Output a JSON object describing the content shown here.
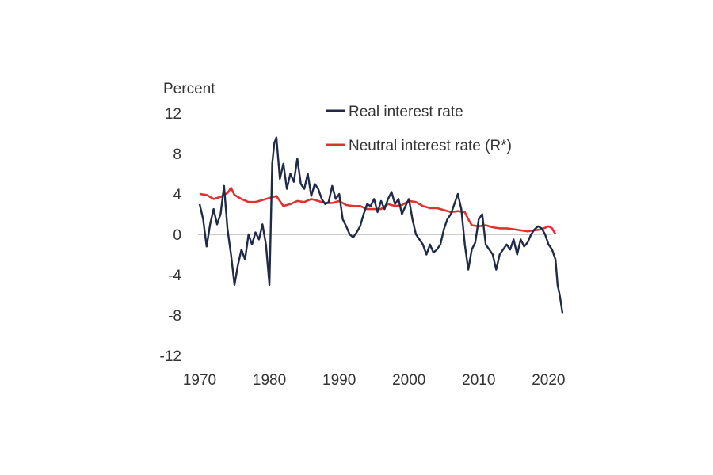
{
  "chart_data": {
    "type": "line",
    "title": "",
    "y_unit_label": "Percent",
    "xlabel": "",
    "ylabel": "Percent",
    "xlim": [
      1970,
      2022
    ],
    "ylim": [
      -12,
      12
    ],
    "x_ticks": [
      1970,
      1980,
      1990,
      2000,
      2010,
      2020
    ],
    "y_ticks": [
      12,
      8,
      4,
      0,
      -4,
      -8,
      -12
    ],
    "legend_position": "top-right",
    "series": [
      {
        "name": "Real interest rate",
        "color": "#1f2a48",
        "x": [
          1970,
          1970.5,
          1971,
          1971.5,
          1972,
          1972.5,
          1973,
          1973.5,
          1974,
          1974.5,
          1975,
          1975.5,
          1976,
          1976.5,
          1977,
          1977.5,
          1978,
          1978.5,
          1979,
          1979.5,
          1980,
          1980.4,
          1980.7,
          1981,
          1981.5,
          1982,
          1982.5,
          1983,
          1983.5,
          1984,
          1984.5,
          1985,
          1985.5,
          1986,
          1986.5,
          1987,
          1987.5,
          1988,
          1988.5,
          1989,
          1989.5,
          1990,
          1990.5,
          1991,
          1991.5,
          1992,
          1992.5,
          1993,
          1993.5,
          1994,
          1994.5,
          1995,
          1995.5,
          1996,
          1996.5,
          1997,
          1997.5,
          1998,
          1998.5,
          1999,
          1999.5,
          2000,
          2000.5,
          2001,
          2001.5,
          2002,
          2002.5,
          2003,
          2003.5,
          2004,
          2004.5,
          2005,
          2005.5,
          2006,
          2006.5,
          2007,
          2007.5,
          2008,
          2008.5,
          2009,
          2009.5,
          2010,
          2010.5,
          2011,
          2011.5,
          2012,
          2012.5,
          2013,
          2013.5,
          2014,
          2014.5,
          2015,
          2015.5,
          2016,
          2016.5,
          2017,
          2017.5,
          2018,
          2018.5,
          2019,
          2019.5,
          2020,
          2020.5,
          2021,
          2021.3,
          2021.6,
          2022
        ],
        "values": [
          3.0,
          1.5,
          -1.2,
          1.0,
          2.5,
          1.0,
          2.0,
          4.8,
          0.5,
          -2.0,
          -5.0,
          -3.0,
          -1.5,
          -2.5,
          0.0,
          -1.0,
          0.2,
          -0.5,
          1.0,
          -1.0,
          -5.0,
          7.0,
          9.0,
          9.6,
          5.5,
          7.0,
          4.5,
          6.0,
          5.2,
          7.5,
          5.0,
          4.5,
          6.0,
          3.8,
          5.0,
          4.5,
          3.5,
          3.0,
          3.2,
          4.8,
          3.5,
          4.0,
          1.5,
          0.8,
          0.0,
          -0.3,
          0.2,
          0.8,
          2.0,
          3.0,
          2.8,
          3.5,
          2.2,
          3.3,
          2.5,
          3.5,
          4.2,
          3.0,
          3.5,
          2.0,
          2.8,
          3.5,
          1.5,
          0.0,
          -0.5,
          -1.0,
          -2.0,
          -1.0,
          -1.8,
          -1.5,
          -1.0,
          0.5,
          1.5,
          2.0,
          3.0,
          4.0,
          2.5,
          -1.0,
          -3.5,
          -1.5,
          -0.8,
          1.5,
          2.0,
          -1.0,
          -1.5,
          -2.0,
          -3.5,
          -2.0,
          -1.5,
          -1.0,
          -1.5,
          -0.5,
          -2.0,
          -0.5,
          -1.2,
          -0.8,
          0.0,
          0.5,
          0.8,
          0.6,
          0.0,
          -1.0,
          -1.5,
          -2.5,
          -5.0,
          -6.0,
          -7.8
        ]
      },
      {
        "name": "Neutral interest rate (R*)",
        "color": "#e0312f",
        "x": [
          1970,
          1971,
          1972,
          1973,
          1974,
          1974.5,
          1975,
          1976,
          1977,
          1978,
          1979,
          1980,
          1981,
          1982,
          1983,
          1984,
          1985,
          1986,
          1987,
          1988,
          1989,
          1990,
          1991,
          1992,
          1993,
          1994,
          1995,
          1996,
          1997,
          1998,
          1999,
          2000,
          2001,
          2002,
          2003,
          2004,
          2005,
          2006,
          2007,
          2008,
          2008.5,
          2009,
          2010,
          2011,
          2012,
          2013,
          2014,
          2015,
          2016,
          2017,
          2018,
          2019,
          2020,
          2020.5,
          2021
        ],
        "values": [
          4.0,
          3.9,
          3.5,
          3.7,
          4.1,
          4.6,
          3.9,
          3.5,
          3.2,
          3.2,
          3.4,
          3.6,
          3.8,
          2.8,
          3.0,
          3.3,
          3.2,
          3.5,
          3.3,
          3.1,
          3.1,
          3.3,
          2.9,
          2.8,
          2.8,
          2.5,
          2.5,
          2.5,
          3.0,
          2.8,
          2.9,
          3.3,
          3.2,
          2.8,
          2.6,
          2.6,
          2.4,
          2.2,
          2.3,
          2.2,
          1.5,
          0.9,
          0.8,
          0.9,
          0.7,
          0.6,
          0.6,
          0.5,
          0.4,
          0.3,
          0.4,
          0.5,
          0.8,
          0.6,
          0.0
        ]
      }
    ]
  }
}
